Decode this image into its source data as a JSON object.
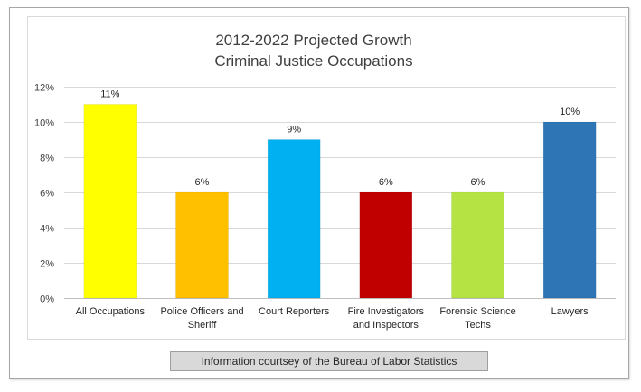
{
  "chart_data": {
    "type": "bar",
    "title": "2012-2022 Projected Growth",
    "subtitle": "Criminal Justice Occupations",
    "categories": [
      [
        "All Occupations"
      ],
      [
        "Police Officers and",
        "Sheriff"
      ],
      [
        "Court Reporters"
      ],
      [
        "Fire Investigators",
        "and Inspectors"
      ],
      [
        "Forensic Science",
        "Techs"
      ],
      [
        "Lawyers"
      ]
    ],
    "values": [
      11,
      6,
      9,
      6,
      6,
      10
    ],
    "data_labels": [
      "11%",
      "6%",
      "9%",
      "6%",
      "6%",
      "10%"
    ],
    "colors": [
      "#ffff00",
      "#ffc000",
      "#00b0f0",
      "#c00000",
      "#b4e343",
      "#2e75b6"
    ],
    "ylim": [
      0,
      12
    ],
    "yticks": [
      0,
      2,
      4,
      6,
      8,
      10,
      12
    ],
    "ytick_labels": [
      "0%",
      "2%",
      "4%",
      "6%",
      "8%",
      "10%",
      "12%"
    ],
    "xlabel": "",
    "ylabel": "",
    "grid": true,
    "legend": false
  },
  "footer": {
    "note": "Information courtsey of the Bureau of Labor Statistics"
  }
}
